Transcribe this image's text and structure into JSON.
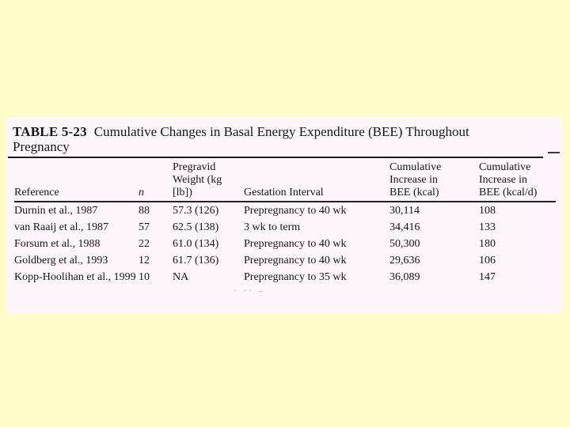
{
  "page": {
    "background_color": "#FEFCC8",
    "panel_background_color": "#FDF6FA",
    "rule_color": "#1c1c1c",
    "text_color": "#161616"
  },
  "table": {
    "title_label": "TABLE 5-23",
    "title_text": "Cumulative Changes in Basal Energy Expenditure (BEE) Throughout Pregnancy",
    "columns": [
      "Reference",
      "n",
      "Pregravid\nWeight (kg\n[lb])",
      "Gestation Interval",
      "Cumulative\nIncrease in\nBEE (kcal)",
      "Cumulative\nIncrease in\nBEE (kcal/d)"
    ],
    "rows": [
      [
        "Durnin et al., 1987",
        "88",
        "57.3 (126)",
        "Prepregnancy to 40 wk",
        "30,114",
        "108"
      ],
      [
        "van Raaij et al., 1987",
        "57",
        "62.5 (138)",
        "3 wk to term",
        "34,416",
        "133"
      ],
      [
        "Forsum et al., 1988",
        "22",
        "61.0 (134)",
        "Prepregnancy to 40 wk",
        "50,300",
        "180"
      ],
      [
        "Goldberg et al., 1993",
        "12",
        "61.7 (136)",
        "Prepregnancy to 40 wk",
        "29,636",
        "106"
      ],
      [
        "Kopp-Hoolihan et al., 1999",
        "10",
        "NA",
        "Prepregnancy to 35 wk",
        "36,089",
        "147"
      ]
    ],
    "scan_artifact_text": "· ··  –"
  }
}
